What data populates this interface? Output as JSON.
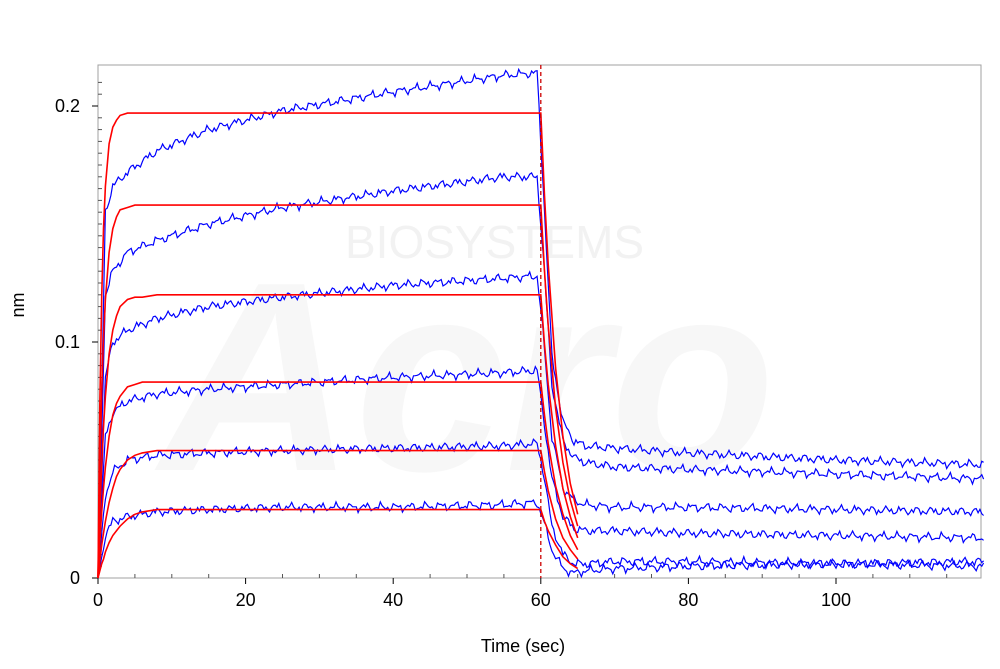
{
  "chart_data": {
    "type": "line",
    "title": "",
    "xlabel": "Time (sec)",
    "ylabel": "nm",
    "xlim": [
      0,
      120
    ],
    "ylim": [
      0,
      0.215
    ],
    "x_ticks": [
      0,
      20,
      40,
      60,
      80,
      100
    ],
    "y_ticks": [
      0,
      0.1,
      0.2
    ],
    "x_tick_labels": [
      "0",
      "20",
      "40",
      "60",
      "80",
      "100"
    ],
    "y_tick_labels": [
      "0",
      "0.1",
      "0.2"
    ],
    "grid": false,
    "legend": "none",
    "dissociation_start": 60,
    "watermark": {
      "big": "Acro",
      "small": "BIOSYSTEMS"
    },
    "colors": {
      "measured": "#0000ff",
      "fit": "#ff0000",
      "marker": "#cc0000",
      "frame": "#a0a0a0"
    },
    "series": [
      {
        "kind": "measured",
        "x": [
          0,
          1,
          2,
          4,
          8,
          15,
          25,
          40,
          55,
          59.5,
          60.3,
          61.5,
          63,
          64.5,
          66,
          70,
          80,
          100,
          120
        ],
        "y": [
          0,
          0.155,
          0.166,
          0.172,
          0.181,
          0.19,
          0.198,
          0.206,
          0.213,
          0.214,
          0.168,
          0.094,
          0.066,
          0.058,
          0.056,
          0.055,
          0.053,
          0.05,
          0.048
        ]
      },
      {
        "kind": "measured",
        "x": [
          0,
          1,
          2,
          4,
          8,
          15,
          25,
          40,
          55,
          59.5,
          60.3,
          61.5,
          63,
          64.5,
          66,
          70,
          80,
          100,
          120
        ],
        "y": [
          0,
          0.12,
          0.13,
          0.138,
          0.143,
          0.15,
          0.157,
          0.164,
          0.17,
          0.17,
          0.138,
          0.082,
          0.058,
          0.051,
          0.049,
          0.047,
          0.046,
          0.044,
          0.042
        ]
      },
      {
        "kind": "measured",
        "x": [
          0,
          1,
          2,
          4,
          8,
          15,
          25,
          40,
          55,
          59.5,
          60.3,
          61.5,
          63,
          64.5,
          66,
          70,
          80,
          100,
          120
        ],
        "y": [
          0,
          0.085,
          0.1,
          0.105,
          0.11,
          0.115,
          0.119,
          0.124,
          0.127,
          0.128,
          0.104,
          0.06,
          0.038,
          0.033,
          0.031,
          0.03,
          0.03,
          0.029,
          0.028
        ]
      },
      {
        "kind": "measured",
        "x": [
          0,
          1,
          2,
          4,
          8,
          15,
          25,
          40,
          55,
          59.5,
          60.3,
          61.5,
          63,
          64.5,
          66,
          70,
          80,
          100,
          120
        ],
        "y": [
          0,
          0.06,
          0.07,
          0.075,
          0.078,
          0.08,
          0.082,
          0.085,
          0.087,
          0.088,
          0.07,
          0.042,
          0.026,
          0.021,
          0.02,
          0.02,
          0.019,
          0.018,
          0.017
        ]
      },
      {
        "kind": "measured",
        "x": [
          0,
          1,
          2,
          4,
          8,
          15,
          25,
          40,
          55,
          59.5,
          60.3,
          61.5,
          63,
          64.5,
          66,
          70,
          80,
          100,
          120
        ],
        "y": [
          0,
          0.035,
          0.045,
          0.05,
          0.052,
          0.053,
          0.054,
          0.055,
          0.056,
          0.057,
          0.046,
          0.022,
          0.01,
          0.006,
          0.006,
          0.007,
          0.007,
          0.006,
          0.005
        ]
      },
      {
        "kind": "measured",
        "x": [
          0,
          1,
          2,
          4,
          8,
          15,
          25,
          40,
          55,
          59.5,
          60.3,
          61.5,
          63,
          64.5,
          66,
          70,
          80,
          100,
          120
        ],
        "y": [
          0,
          0.018,
          0.024,
          0.026,
          0.028,
          0.029,
          0.03,
          0.03,
          0.031,
          0.032,
          0.025,
          0.012,
          0.004,
          0.002,
          0.003,
          0.004,
          0.005,
          0.006,
          0.007
        ]
      },
      {
        "kind": "fit",
        "x": [
          0,
          0.25,
          0.5,
          0.75,
          1,
          1.5,
          2,
          2.5,
          3,
          4,
          5,
          6,
          8,
          60,
          60.5,
          61,
          62,
          63,
          64,
          65
        ],
        "y": [
          0,
          0.073,
          0.119,
          0.148,
          0.166,
          0.184,
          0.191,
          0.194,
          0.196,
          0.197,
          0.197,
          0.197,
          0.197,
          0.197,
          0.162,
          0.133,
          0.089,
          0.06,
          0.04,
          0.027
        ]
      },
      {
        "kind": "fit",
        "x": [
          0,
          0.25,
          0.5,
          0.75,
          1,
          1.5,
          2,
          2.5,
          3,
          4,
          5,
          6,
          8,
          60,
          60.5,
          61,
          62,
          63,
          64,
          65
        ],
        "y": [
          0,
          0.046,
          0.079,
          0.102,
          0.118,
          0.138,
          0.148,
          0.153,
          0.156,
          0.157,
          0.158,
          0.158,
          0.158,
          0.158,
          0.13,
          0.107,
          0.072,
          0.049,
          0.033,
          0.022
        ]
      },
      {
        "kind": "fit",
        "x": [
          0,
          0.25,
          0.5,
          0.75,
          1,
          1.5,
          2,
          2.5,
          3,
          4,
          5,
          6,
          8,
          60,
          60.5,
          61,
          62,
          63,
          64,
          65
        ],
        "y": [
          0,
          0.027,
          0.048,
          0.064,
          0.077,
          0.095,
          0.105,
          0.111,
          0.115,
          0.118,
          0.119,
          0.119,
          0.12,
          0.12,
          0.099,
          0.082,
          0.056,
          0.038,
          0.026,
          0.017
        ]
      },
      {
        "kind": "fit",
        "x": [
          0,
          0.25,
          0.5,
          0.75,
          1,
          1.5,
          2,
          2.5,
          3,
          4,
          5,
          6,
          8,
          60,
          60.5,
          61,
          62,
          63,
          64,
          65
        ],
        "y": [
          0,
          0.015,
          0.028,
          0.038,
          0.047,
          0.06,
          0.069,
          0.074,
          0.077,
          0.081,
          0.082,
          0.083,
          0.083,
          0.083,
          0.069,
          0.057,
          0.039,
          0.027,
          0.018,
          0.012
        ]
      },
      {
        "kind": "fit",
        "x": [
          0,
          0.25,
          0.5,
          0.75,
          1,
          1.5,
          2,
          2.5,
          3,
          4,
          5,
          6,
          8,
          60,
          60.5,
          61,
          62,
          63,
          64,
          65
        ],
        "y": [
          0,
          0.007,
          0.014,
          0.019,
          0.024,
          0.032,
          0.038,
          0.043,
          0.046,
          0.05,
          0.052,
          0.053,
          0.054,
          0.054,
          0.045,
          0.037,
          0.025,
          0.017,
          0.012,
          0.008
        ]
      },
      {
        "kind": "fit",
        "x": [
          0,
          0.25,
          0.5,
          0.75,
          1,
          1.5,
          2,
          2.5,
          3,
          4,
          5,
          6,
          8,
          60,
          60.5,
          61,
          62,
          63,
          64,
          65
        ],
        "y": [
          0,
          0.003,
          0.006,
          0.008,
          0.011,
          0.015,
          0.018,
          0.02,
          0.022,
          0.025,
          0.027,
          0.028,
          0.029,
          0.029,
          0.024,
          0.02,
          0.014,
          0.009,
          0.006,
          0.004
        ]
      }
    ]
  }
}
